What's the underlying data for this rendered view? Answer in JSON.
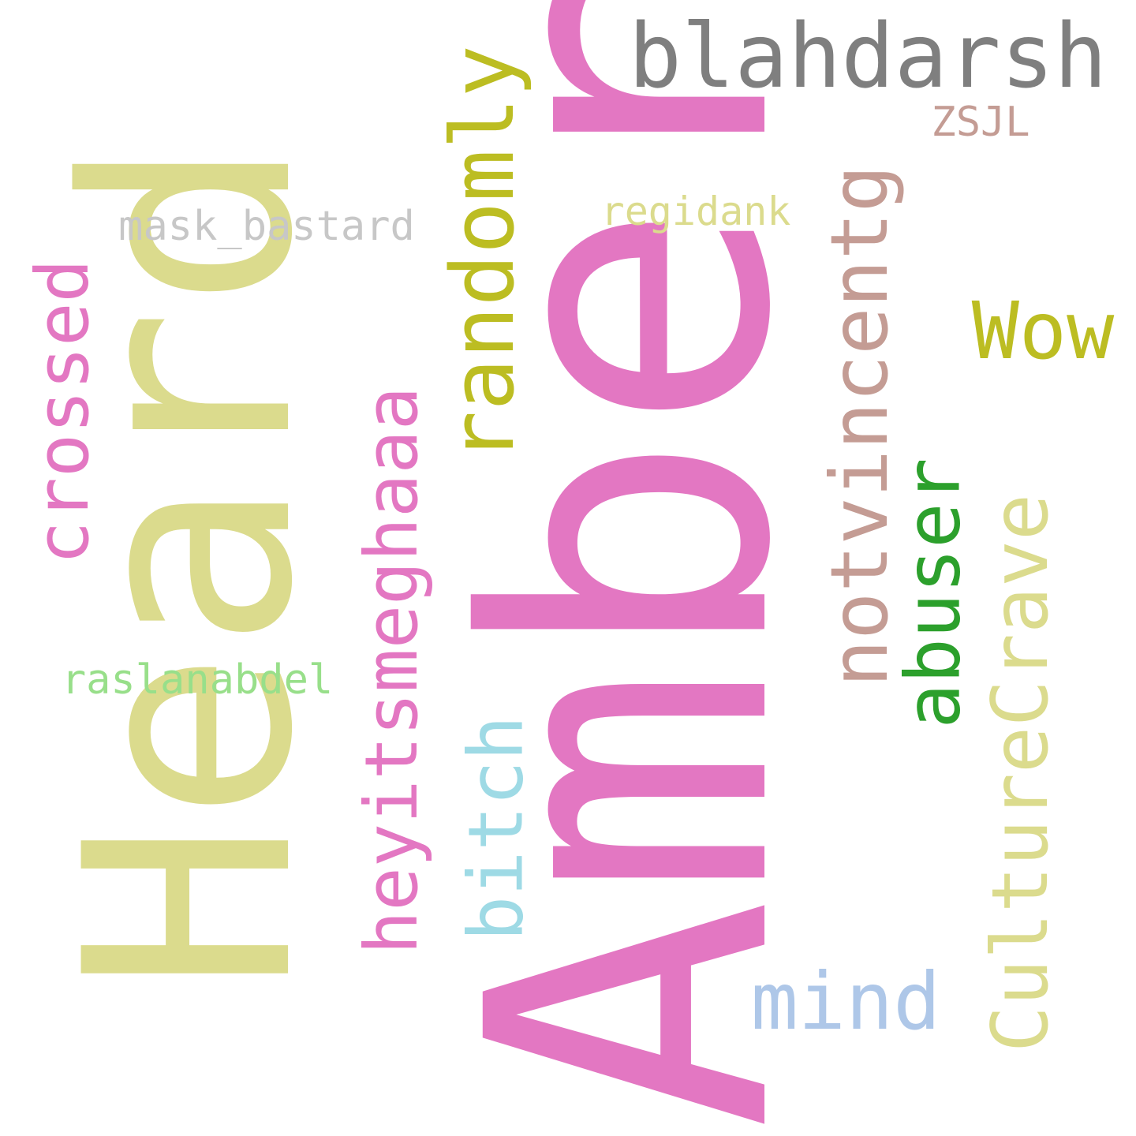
{
  "words": [
    {
      "key": "heard",
      "text": "Heard",
      "color": "#dbdb8d"
    },
    {
      "key": "amber",
      "text": "Amber",
      "color": "#e377c2"
    },
    {
      "key": "blahdarsh",
      "text": "blahdarsh",
      "color": "#7f7f7f"
    },
    {
      "key": "randomly",
      "text": "randomly",
      "color": "#bcbd22"
    },
    {
      "key": "notvincentg",
      "text": "notvincentg",
      "color": "#c49c94"
    },
    {
      "key": "wow",
      "text": "Wow",
      "color": "#bcbd22"
    },
    {
      "key": "abuser",
      "text": "abuser",
      "color": "#2ca02c"
    },
    {
      "key": "culturecrave",
      "text": "CultureCrave",
      "color": "#dbdb8d"
    },
    {
      "key": "heyitsmeghaaa",
      "text": "heyitsmeghaaa",
      "color": "#e377c2"
    },
    {
      "key": "crossed",
      "text": "crossed",
      "color": "#e377c2"
    },
    {
      "key": "bitch",
      "text": "bitch",
      "color": "#9edae5"
    },
    {
      "key": "mind",
      "text": "mind",
      "color": "#aec7e8"
    },
    {
      "key": "mask",
      "text": "mask_bastard",
      "color": "#c7c7c7"
    },
    {
      "key": "regidank",
      "text": "regidank",
      "color": "#dbdb8d"
    },
    {
      "key": "raslanabdel",
      "text": "raslanabdel",
      "color": "#98df8a"
    },
    {
      "key": "zsjl",
      "text": "ZSJL",
      "color": "#c49c94"
    }
  ]
}
